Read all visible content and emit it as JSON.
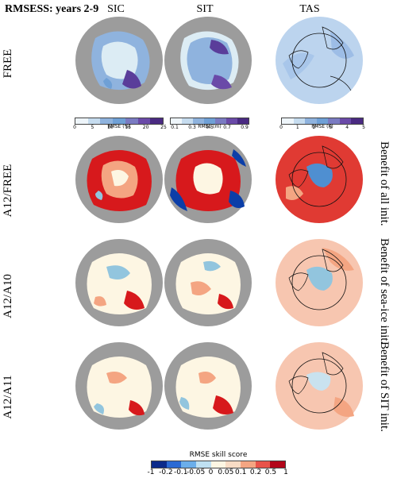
{
  "figure": {
    "title": "RMSESS: years 2-9",
    "columns": [
      "SIC",
      "SIT",
      "TAS"
    ],
    "rows": [
      {
        "label": "FREE",
        "right_label": ""
      },
      {
        "label": "A12/FREE",
        "right_label": "Benefit of all init."
      },
      {
        "label": "A12/A10",
        "right_label": "Benefit of sea-ice init."
      },
      {
        "label": "A12/A11",
        "right_label": "Benefit of SIT init."
      }
    ]
  },
  "colorbars": {
    "sic": {
      "title": "RMSE (%)",
      "ticks": [
        "0",
        "5",
        "10",
        "15",
        "20",
        "25"
      ]
    },
    "sit": {
      "title": "RMSE (m)",
      "ticks": [
        "0.1",
        "0.3",
        "0.5",
        "0.7",
        "0.9"
      ]
    },
    "tas": {
      "title": "RMSE (K)",
      "ticks": [
        "0",
        "1",
        "2",
        "3",
        "4",
        "5"
      ]
    },
    "skill": {
      "title": "RMSE skill score",
      "ticks": [
        "-1",
        "-0.2",
        "-0.1",
        "-0.05",
        "0",
        "0.05",
        "0.1",
        "0.2",
        "0.5",
        "1"
      ]
    }
  },
  "colors": {
    "land": "#9c9c9c",
    "ocean_free": "#e8f2f7",
    "rmse_low": "#dcecf4",
    "rmse_mid": "#6fa0d6",
    "rmse_high": "#5a3d9a",
    "skill_pos_strong": "#d7191c",
    "skill_pos_weak": "#f4a582",
    "skill_neutral": "#fdf6e3",
    "skill_neg_weak": "#92c5de",
    "skill_neg_strong": "#0b3ea8"
  }
}
